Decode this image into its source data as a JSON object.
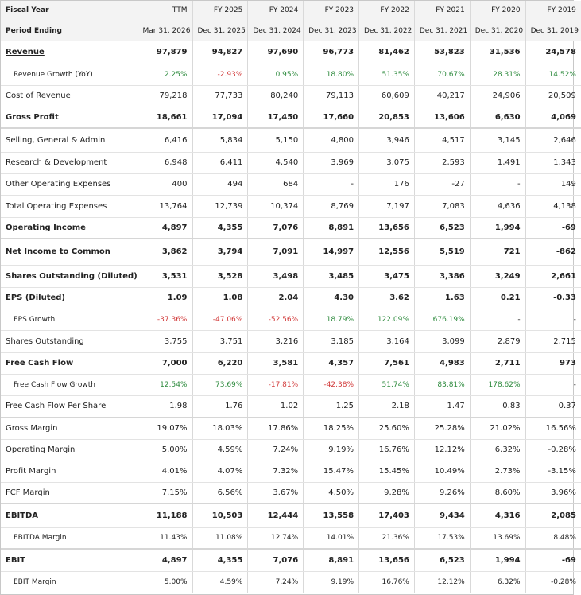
{
  "columns": {
    "label_header": "Fiscal Year",
    "period_header": "Period Ending",
    "years": [
      "TTM",
      "FY 2025",
      "FY 2024",
      "FY 2023",
      "FY 2022",
      "FY 2021",
      "FY 2020",
      "FY 2019"
    ],
    "periods": [
      "Mar 31, 2026",
      "Dec 31, 2025",
      "Dec 31, 2024",
      "Dec 31, 2023",
      "Dec 31, 2022",
      "Dec 31, 2021",
      "Dec 31, 2020",
      "Dec 31, 2019"
    ]
  },
  "rows": [
    {
      "label": "Revenue",
      "style": "link",
      "values": [
        "97,879",
        "94,827",
        "97,690",
        "96,773",
        "81,462",
        "53,823",
        "31,536",
        "24,578"
      ]
    },
    {
      "label": "Revenue Growth (YoY)",
      "style": "sub",
      "values": [
        "2.25%",
        "-2.93%",
        "0.95%",
        "18.80%",
        "51.35%",
        "70.67%",
        "28.31%",
        "14.52%"
      ],
      "colored": true
    },
    {
      "label": "Cost of Revenue",
      "style": "normal",
      "values": [
        "79,218",
        "77,733",
        "80,240",
        "79,113",
        "60,609",
        "40,217",
        "24,906",
        "20,509"
      ]
    },
    {
      "label": "Gross Profit",
      "style": "bold-sep",
      "values": [
        "18,661",
        "17,094",
        "17,450",
        "17,660",
        "20,853",
        "13,606",
        "6,630",
        "4,069"
      ]
    },
    {
      "label": "Selling, General & Admin",
      "style": "normal",
      "values": [
        "6,416",
        "5,834",
        "5,150",
        "4,800",
        "3,946",
        "4,517",
        "3,145",
        "2,646"
      ]
    },
    {
      "label": "Research & Development",
      "style": "normal",
      "values": [
        "6,948",
        "6,411",
        "4,540",
        "3,969",
        "3,075",
        "2,593",
        "1,491",
        "1,343"
      ]
    },
    {
      "label": "Other Operating Expenses",
      "style": "normal",
      "values": [
        "400",
        "494",
        "684",
        "-",
        "176",
        "-27",
        "-",
        "149"
      ]
    },
    {
      "label": "Total Operating Expenses",
      "style": "normal",
      "values": [
        "13,764",
        "12,739",
        "10,374",
        "8,769",
        "7,197",
        "7,083",
        "4,636",
        "4,138"
      ]
    },
    {
      "label": "Operating Income",
      "style": "bold-sep",
      "values": [
        "4,897",
        "4,355",
        "7,076",
        "8,891",
        "13,656",
        "6,523",
        "1,994",
        "-69"
      ]
    },
    {
      "label": "Net Income to Common",
      "style": "bold",
      "values": [
        "3,862",
        "3,794",
        "7,091",
        "14,997",
        "12,556",
        "5,519",
        "721",
        "-862"
      ]
    },
    {
      "label": "Shares Outstanding (Diluted)",
      "style": "bold",
      "values": [
        "3,531",
        "3,528",
        "3,498",
        "3,485",
        "3,475",
        "3,386",
        "3,249",
        "2,661"
      ]
    },
    {
      "label": "EPS (Diluted)",
      "style": "bold",
      "values": [
        "1.09",
        "1.08",
        "2.04",
        "4.30",
        "3.62",
        "1.63",
        "0.21",
        "-0.33"
      ]
    },
    {
      "label": "EPS Growth",
      "style": "sub",
      "values": [
        "-37.36%",
        "-47.06%",
        "-52.56%",
        "18.79%",
        "122.09%",
        "676.19%",
        "-",
        "-"
      ],
      "colored": true
    },
    {
      "label": "Shares Outstanding",
      "style": "normal",
      "values": [
        "3,755",
        "3,751",
        "3,216",
        "3,185",
        "3,164",
        "3,099",
        "2,879",
        "2,715"
      ]
    },
    {
      "label": "Free Cash Flow",
      "style": "bold",
      "values": [
        "7,000",
        "6,220",
        "3,581",
        "4,357",
        "7,561",
        "4,983",
        "2,711",
        "973"
      ]
    },
    {
      "label": "Free Cash Flow Growth",
      "style": "sub",
      "values": [
        "12.54%",
        "73.69%",
        "-17.81%",
        "-42.38%",
        "51.74%",
        "83.81%",
        "178.62%",
        "-"
      ],
      "colored": true
    },
    {
      "label": "Free Cash Flow Per Share",
      "style": "normal-sep",
      "values": [
        "1.98",
        "1.76",
        "1.02",
        "1.25",
        "2.18",
        "1.47",
        "0.83",
        "0.37"
      ]
    },
    {
      "label": "Gross Margin",
      "style": "normal",
      "values": [
        "19.07%",
        "18.03%",
        "17.86%",
        "18.25%",
        "25.60%",
        "25.28%",
        "21.02%",
        "16.56%"
      ]
    },
    {
      "label": "Operating Margin",
      "style": "normal",
      "values": [
        "5.00%",
        "4.59%",
        "7.24%",
        "9.19%",
        "16.76%",
        "12.12%",
        "6.32%",
        "-0.28%"
      ]
    },
    {
      "label": "Profit Margin",
      "style": "normal",
      "values": [
        "4.01%",
        "4.07%",
        "7.32%",
        "15.47%",
        "15.45%",
        "10.49%",
        "2.73%",
        "-3.15%"
      ]
    },
    {
      "label": "FCF Margin",
      "style": "normal-sep",
      "values": [
        "7.15%",
        "6.56%",
        "3.67%",
        "4.50%",
        "9.28%",
        "9.26%",
        "8.60%",
        "3.96%"
      ]
    },
    {
      "label": "EBITDA",
      "style": "bold",
      "values": [
        "11,188",
        "10,503",
        "12,444",
        "13,558",
        "17,403",
        "9,434",
        "4,316",
        "2,085"
      ]
    },
    {
      "label": "EBITDA Margin",
      "style": "sub-sep",
      "values": [
        "11.43%",
        "11.08%",
        "12.74%",
        "14.01%",
        "21.36%",
        "17.53%",
        "13.69%",
        "8.48%"
      ]
    },
    {
      "label": "EBIT",
      "style": "bold",
      "values": [
        "4,897",
        "4,355",
        "7,076",
        "8,891",
        "13,656",
        "6,523",
        "1,994",
        "-69"
      ]
    },
    {
      "label": "EBIT Margin",
      "style": "sub",
      "values": [
        "5.00%",
        "4.59%",
        "7.24%",
        "9.19%",
        "16.76%",
        "12.12%",
        "6.32%",
        "-0.28%"
      ]
    }
  ],
  "colors": {
    "positive": "#2e8b3e",
    "negative": "#d23b3b"
  }
}
